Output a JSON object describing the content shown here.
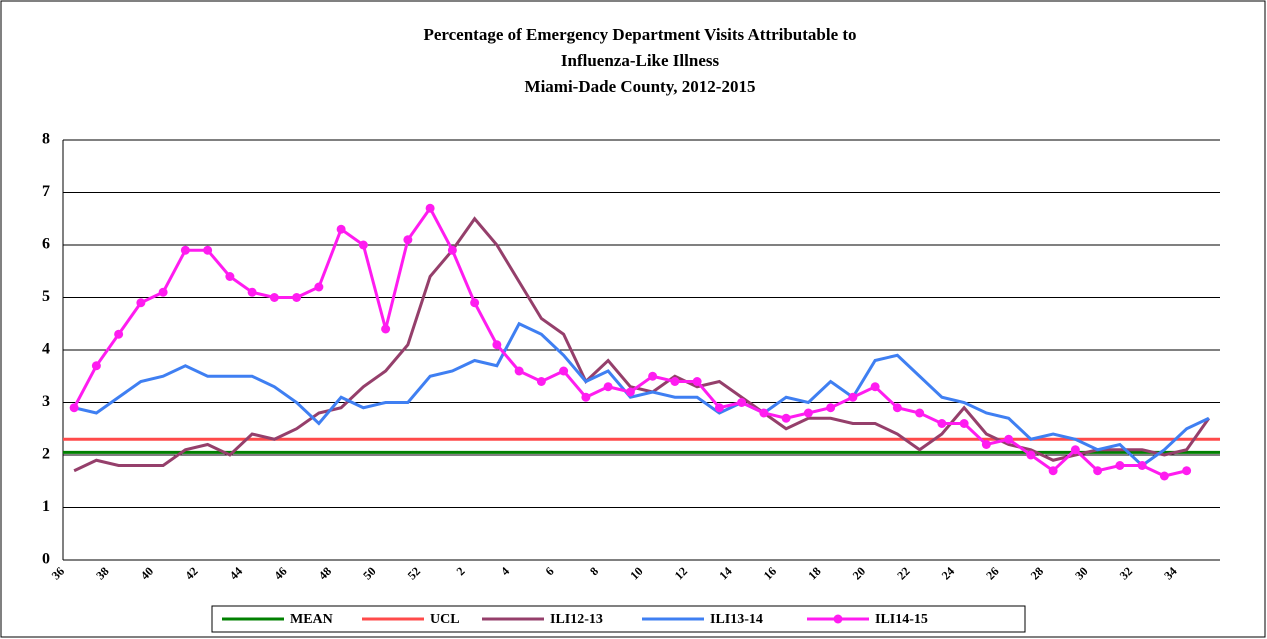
{
  "chart_data": {
    "type": "line",
    "title": [
      "Percentage of Emergency Department Visits Attributable to",
      "Influenza-Like Illness",
      "Miami-Dade County, 2012-2015"
    ],
    "categories": [
      "36",
      null,
      "38",
      null,
      "40",
      null,
      "42",
      null,
      "44",
      null,
      "46",
      null,
      "48",
      null,
      "50",
      null,
      "52",
      null,
      "2",
      null,
      "4",
      null,
      "6",
      null,
      "8",
      null,
      "10",
      null,
      "12",
      null,
      "14",
      null,
      "16",
      null,
      "18",
      null,
      "20",
      null,
      "22",
      null,
      "24",
      null,
      "26",
      null,
      "28",
      null,
      "30",
      null,
      "32",
      null,
      "34",
      null
    ],
    "ylim": [
      0,
      8
    ],
    "yticks": [
      0,
      1,
      2,
      3,
      4,
      5,
      6,
      7,
      8
    ],
    "grid": true,
    "series": [
      {
        "name": "MEAN",
        "color": "#008000",
        "value": 2.05
      },
      {
        "name": "UCL",
        "color": "#ff4a4a",
        "value": 2.3
      },
      {
        "name": "ILI12-13",
        "color": "#953f6b",
        "values": [
          1.7,
          1.9,
          1.8,
          1.8,
          1.8,
          2.1,
          2.2,
          2.0,
          2.4,
          2.3,
          2.5,
          2.8,
          2.9,
          3.3,
          3.6,
          4.1,
          5.4,
          5.9,
          6.5,
          6.0,
          5.3,
          4.6,
          4.3,
          3.4,
          3.8,
          3.3,
          3.2,
          3.5,
          3.3,
          3.4,
          3.1,
          2.8,
          2.5,
          2.7,
          2.7,
          2.6,
          2.6,
          2.4,
          2.1,
          2.4,
          2.9,
          2.4,
          2.2,
          2.1,
          1.9,
          2.0,
          2.1,
          2.1,
          2.1,
          2.0,
          2.1,
          2.7
        ]
      },
      {
        "name": "ILI13-14",
        "color": "#3f7ff2",
        "values": [
          2.9,
          2.8,
          3.1,
          3.4,
          3.5,
          3.7,
          3.5,
          3.5,
          3.5,
          3.3,
          3.0,
          2.6,
          3.1,
          2.9,
          3.0,
          3.0,
          3.5,
          3.6,
          3.8,
          3.7,
          4.5,
          4.3,
          3.9,
          3.4,
          3.6,
          3.1,
          3.2,
          3.1,
          3.1,
          2.8,
          3.0,
          2.8,
          3.1,
          3.0,
          3.4,
          3.1,
          3.8,
          3.9,
          3.5,
          3.1,
          3.0,
          2.8,
          2.7,
          2.3,
          2.4,
          2.3,
          2.1,
          2.2,
          1.8,
          2.1,
          2.5,
          2.7
        ]
      },
      {
        "name": "ILI14-15",
        "color": "#ff1cf0",
        "marker": "circle",
        "values": [
          2.9,
          3.7,
          4.3,
          4.9,
          5.1,
          5.9,
          5.9,
          5.4,
          5.1,
          5.0,
          5.0,
          5.2,
          6.3,
          6.0,
          4.4,
          6.1,
          6.7,
          5.9,
          4.9,
          4.1,
          3.6,
          3.4,
          3.6,
          3.1,
          3.3,
          3.2,
          3.5,
          3.4,
          3.4,
          2.9,
          3.0,
          2.8,
          2.7,
          2.8,
          2.9,
          3.1,
          3.3,
          2.9,
          2.8,
          2.6,
          2.6,
          2.2,
          2.3,
          2.0,
          1.7,
          2.1,
          1.7,
          1.8,
          1.8,
          1.6,
          1.7,
          null
        ]
      }
    ]
  }
}
